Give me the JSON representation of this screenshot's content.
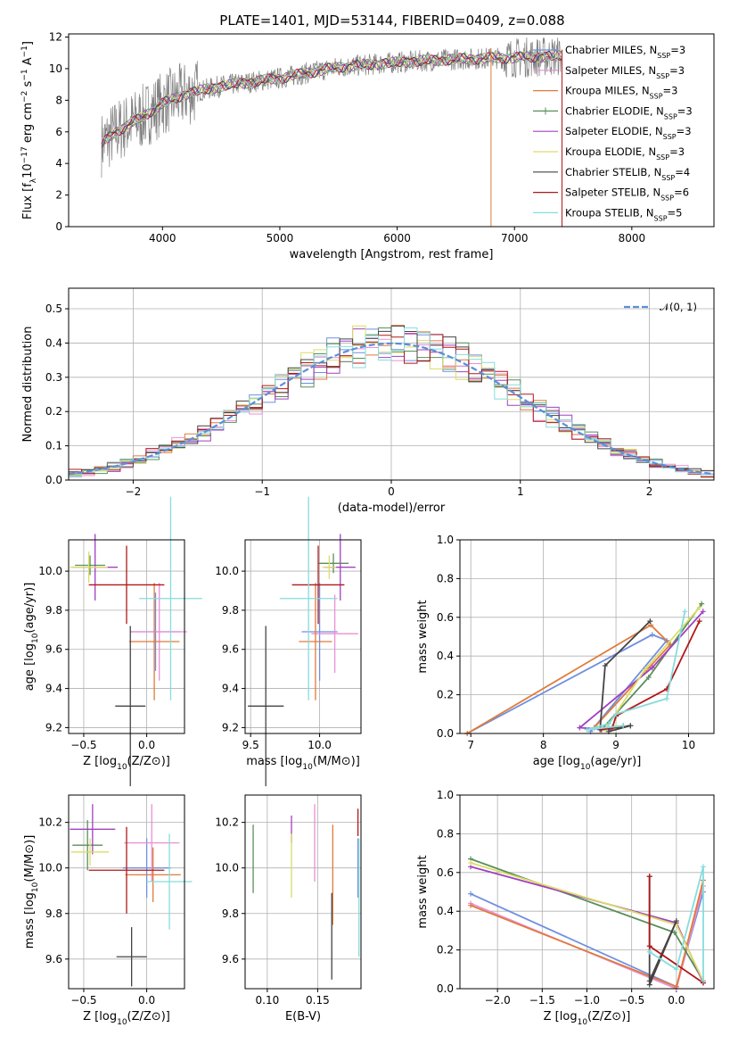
{
  "figure": {
    "title": "PLATE=1401, MJD=53144, FIBERID=0409, z=0.088"
  },
  "colors": [
    "#ff9896",
    "#e377c2",
    "#ff7f0e",
    "#2ca02c",
    "#9467bd",
    "#dbdb8d",
    "#444444",
    "#b22222",
    "#8ed8e0"
  ],
  "chart_data": [
    {
      "id": "spectrum",
      "type": "line",
      "xlabel": "wavelength [Angstrom, rest frame]",
      "ylabel": "Flux [f_λ 10^-17 erg cm^-2 s^-1 A^-1]",
      "xlim": [
        3200,
        8700
      ],
      "ylim": [
        0,
        12.2
      ],
      "xticks": [
        "4000",
        "5000",
        "6000",
        "7000",
        "8000"
      ],
      "yticks": [
        "0",
        "2",
        "4",
        "6",
        "8",
        "10",
        "12"
      ],
      "legend_position": "right",
      "series": [
        {
          "name": "Chabrier MILES, N_SSP=3",
          "color": "#6f8fdf",
          "nssp": "3"
        },
        {
          "name": "Salpeter MILES, N_SSP=3",
          "color": "#e98fd6",
          "nssp": "3"
        },
        {
          "name": "Kroupa MILES, N_SSP=3",
          "color": "#e07b39",
          "nssp": "3"
        },
        {
          "name": "Chabrier ELODIE, N_SSP=3",
          "color": "#5a8f5a",
          "nssp": "3"
        },
        {
          "name": "Salpeter ELODIE, N_SSP=3",
          "color": "#a040c0",
          "nssp": "3"
        },
        {
          "name": "Kroupa ELODIE, N_SSP=3",
          "color": "#dcdc6a",
          "nssp": "3"
        },
        {
          "name": "Chabrier STELIB, N_SSP=4",
          "color": "#444444",
          "nssp": "4"
        },
        {
          "name": "Salpeter STELIB, N_SSP=6",
          "color": "#b01818",
          "nssp": "6"
        },
        {
          "name": "Kroupa STELIB, N_SSP=5",
          "color": "#86dcdc",
          "nssp": "5"
        }
      ],
      "data_color": "#808080",
      "continuum": {
        "x": [
          3480,
          3600,
          3800,
          4000,
          4200,
          4500,
          5000,
          5500,
          6000,
          6500,
          7000,
          7400
        ],
        "y": [
          5.2,
          6.0,
          6.8,
          7.8,
          8.4,
          8.9,
          9.4,
          10.1,
          10.4,
          10.6,
          10.7,
          10.8
        ]
      }
    },
    {
      "id": "residuals",
      "type": "histogram",
      "xlabel": "(data-model)/error",
      "ylabel": "Normed distribution",
      "xlim": [
        -2.5,
        2.5
      ],
      "ylim": [
        0,
        0.56
      ],
      "xticks": [
        "−2",
        "−1",
        "0",
        "1",
        "2"
      ],
      "yticks": [
        "0.0",
        "0.1",
        "0.2",
        "0.3",
        "0.4",
        "0.5"
      ],
      "legend": "𝒩(0, 1)",
      "gaussian": {
        "mean": 0,
        "sigma": 1
      }
    },
    {
      "id": "age-vs-Z",
      "type": "errorbar",
      "xlabel": "Z [log10(Z/Z⊙)]",
      "ylabel": "age [log10(age/yr)]",
      "xlim": [
        -0.62,
        0.3
      ],
      "ylim": [
        9.17,
        10.16
      ],
      "xticks": [
        "−0.5",
        "0.0"
      ],
      "yticks": [
        "9.2",
        "9.4",
        "9.6",
        "9.8",
        "10.0"
      ],
      "points": [
        {
          "x": 0.07,
          "y": 9.69,
          "ex": 0.2,
          "ey": 0.2,
          "c": "#6f8fdf"
        },
        {
          "x": 0.1,
          "y": 9.69,
          "ex": 0.22,
          "ey": 0.25,
          "c": "#e98fd6"
        },
        {
          "x": 0.06,
          "y": 9.64,
          "ex": 0.2,
          "ey": 0.3,
          "c": "#e07b39"
        },
        {
          "x": -0.45,
          "y": 10.03,
          "ex": 0.12,
          "ey": 0.05,
          "c": "#5a8f5a"
        },
        {
          "x": -0.41,
          "y": 10.02,
          "ex": 0.18,
          "ey": 0.17,
          "c": "#a040c0"
        },
        {
          "x": -0.46,
          "y": 10.02,
          "ex": 0.15,
          "ey": 0.08,
          "c": "#dcdc6a"
        },
        {
          "x": -0.13,
          "y": 9.31,
          "ex": 0.12,
          "ey": 0.41,
          "c": "#444444"
        },
        {
          "x": -0.16,
          "y": 9.93,
          "ex": 0.3,
          "ey": 0.2,
          "c": "#b01818"
        },
        {
          "x": 0.19,
          "y": 9.86,
          "ex": 0.25,
          "ey": 0.52,
          "c": "#86dcdc"
        }
      ]
    },
    {
      "id": "age-vs-mass",
      "type": "errorbar",
      "xlabel": "mass [log10(M/M⊙)]",
      "ylabel": "",
      "xlim": [
        9.46,
        10.3
      ],
      "ylim": [
        9.17,
        10.16
      ],
      "xticks": [
        "9.5",
        "10.0"
      ],
      "yticks": [
        "9.2",
        "9.4",
        "9.6",
        "9.8",
        "10.0"
      ],
      "points": [
        {
          "x": 10.0,
          "y": 9.69,
          "ex": 0.13,
          "ey": 0.25,
          "c": "#6f8fdf"
        },
        {
          "x": 10.11,
          "y": 9.68,
          "ex": 0.17,
          "ey": 0.2,
          "c": "#e98fd6"
        },
        {
          "x": 9.97,
          "y": 9.64,
          "ex": 0.12,
          "ey": 0.3,
          "c": "#e07b39"
        },
        {
          "x": 10.1,
          "y": 10.04,
          "ex": 0.11,
          "ey": 0.05,
          "c": "#5a8f5a"
        },
        {
          "x": 10.15,
          "y": 10.02,
          "ex": 0.11,
          "ey": 0.17,
          "c": "#a040c0"
        },
        {
          "x": 10.07,
          "y": 10.02,
          "ex": 0.05,
          "ey": 0.06,
          "c": "#dcdc6a"
        },
        {
          "x": 9.61,
          "y": 9.31,
          "ex": 0.13,
          "ey": 0.41,
          "c": "#444444"
        },
        {
          "x": 9.99,
          "y": 9.93,
          "ex": 0.19,
          "ey": 0.2,
          "c": "#b01818"
        },
        {
          "x": 9.92,
          "y": 9.86,
          "ex": 0.21,
          "ey": 0.52,
          "c": "#86dcdc"
        }
      ]
    },
    {
      "id": "massweight-vs-age",
      "type": "line",
      "xlabel": "age [log10(age/yr)]",
      "ylabel": "mass weight",
      "xlim": [
        6.85,
        10.35
      ],
      "ylim": [
        0,
        1
      ],
      "xticks": [
        "7",
        "8",
        "9",
        "10"
      ],
      "yticks": [
        "0.0",
        "0.2",
        "0.4",
        "0.6",
        "0.8",
        "1.0"
      ],
      "series": [
        {
          "c": "#6f8fdf",
          "x": [
            6.95,
            9.5,
            9.7,
            8.65
          ],
          "y": [
            0.0,
            0.51,
            0.48,
            0.01
          ]
        },
        {
          "c": "#e07b39",
          "x": [
            6.95,
            9.48,
            9.75,
            8.7
          ],
          "y": [
            0.0,
            0.56,
            0.46,
            0.03
          ]
        },
        {
          "c": "#5a8f5a",
          "x": [
            10.18,
            9.45,
            8.8,
            9.2
          ],
          "y": [
            0.67,
            0.29,
            0.02,
            0.04
          ]
        },
        {
          "c": "#a040c0",
          "x": [
            10.2,
            9.5,
            8.5,
            8.9
          ],
          "y": [
            0.63,
            0.34,
            0.03,
            0.02
          ]
        },
        {
          "c": "#dcdc6a",
          "x": [
            10.15,
            9.4,
            8.85,
            9.0
          ],
          "y": [
            0.65,
            0.33,
            0.02,
            0.04
          ]
        },
        {
          "c": "#444444",
          "x": [
            9.47,
            8.85,
            8.78,
            9.2,
            8.9
          ],
          "y": [
            0.58,
            0.35,
            0.02,
            0.04,
            0.01
          ]
        },
        {
          "c": "#b01818",
          "x": [
            10.15,
            9.7,
            9.0,
            8.95,
            8.8,
            9.1
          ],
          "y": [
            0.58,
            0.23,
            0.09,
            0.03,
            0.02,
            0.04
          ]
        },
        {
          "c": "#86dcdc",
          "x": [
            9.95,
            9.7,
            9.0,
            8.9,
            8.6,
            9.1
          ],
          "y": [
            0.63,
            0.18,
            0.1,
            0.05,
            0.02,
            0.04
          ]
        }
      ]
    },
    {
      "id": "mass-vs-Z",
      "type": "errorbar",
      "xlabel": "Z [log10(Z/Z⊙)]",
      "ylabel": "mass [log10(M/M⊙)]",
      "xlim": [
        -0.62,
        0.3
      ],
      "ylim": [
        9.47,
        10.32
      ],
      "xticks": [
        "−0.5",
        "0.0"
      ],
      "yticks": [
        "9.6",
        "9.8",
        "10.0",
        "10.2"
      ],
      "points": [
        {
          "x": 0.0,
          "y": 10.0,
          "ex": 0.19,
          "ey": 0.13,
          "c": "#6f8fdf"
        },
        {
          "x": 0.04,
          "y": 10.11,
          "ex": 0.22,
          "ey": 0.17,
          "c": "#e98fd6"
        },
        {
          "x": 0.05,
          "y": 9.97,
          "ex": 0.22,
          "ey": 0.12,
          "c": "#e07b39"
        },
        {
          "x": -0.47,
          "y": 10.1,
          "ex": 0.12,
          "ey": 0.11,
          "c": "#5a8f5a"
        },
        {
          "x": -0.43,
          "y": 10.17,
          "ex": 0.18,
          "ey": 0.11,
          "c": "#a040c0"
        },
        {
          "x": -0.45,
          "y": 10.07,
          "ex": 0.15,
          "ey": 0.06,
          "c": "#dcdc6a"
        },
        {
          "x": -0.12,
          "y": 9.61,
          "ex": 0.12,
          "ey": 0.13,
          "c": "#444444"
        },
        {
          "x": -0.16,
          "y": 9.99,
          "ex": 0.3,
          "ey": 0.19,
          "c": "#b01818"
        },
        {
          "x": 0.18,
          "y": 9.94,
          "ex": 0.18,
          "ey": 0.21,
          "c": "#86dcdc"
        }
      ]
    },
    {
      "id": "mass-vs-EBV",
      "type": "errorbar",
      "xlabel": "E(B-V)",
      "ylabel": "",
      "xlim": [
        0.078,
        0.193
      ],
      "ylim": [
        9.47,
        10.32
      ],
      "xticks": [
        "0.10",
        "0.15"
      ],
      "yticks": [
        "9.6",
        "9.8",
        "10.0",
        "10.2"
      ],
      "points": [
        {
          "x": 0.19,
          "y": 10.0,
          "ex": 0,
          "ey": 0.13,
          "c": "#6f8fdf"
        },
        {
          "x": 0.147,
          "y": 10.11,
          "ex": 0,
          "ey": 0.17,
          "c": "#e98fd6"
        },
        {
          "x": 0.165,
          "y": 9.97,
          "ex": 0,
          "ey": 0.22,
          "c": "#e07b39"
        },
        {
          "x": 0.086,
          "y": 10.04,
          "ex": 0,
          "ey": 0.15,
          "c": "#5a8f5a"
        },
        {
          "x": 0.124,
          "y": 10.17,
          "ex": 0,
          "ey": 0.06,
          "c": "#a040c0"
        },
        {
          "x": 0.124,
          "y": 10.01,
          "ex": 0,
          "ey": 0.14,
          "c": "#dcdc6a"
        },
        {
          "x": 0.164,
          "y": 9.7,
          "ex": 0,
          "ey": 0.19,
          "c": "#444444"
        },
        {
          "x": 0.19,
          "y": 10.2,
          "ex": 0,
          "ey": 0.06,
          "c": "#b01818"
        },
        {
          "x": 0.191,
          "y": 9.87,
          "ex": 0,
          "ey": 0.26,
          "c": "#86dcdc"
        }
      ]
    },
    {
      "id": "massweight-vs-Z",
      "type": "line",
      "xlabel": "Z [log10(Z/Z⊙)]",
      "ylabel": "mass weight",
      "xlim": [
        -2.42,
        0.42
      ],
      "ylim": [
        0,
        1
      ],
      "xticks": [
        "−2.0",
        "−1.5",
        "−1.0",
        "−0.5",
        "0.0"
      ],
      "yticks": [
        "0.0",
        "0.2",
        "0.4",
        "0.6",
        "0.8",
        "1.0"
      ],
      "series": [
        {
          "c": "#6f8fdf",
          "x": [
            -2.3,
            0.0,
            0.3
          ],
          "y": [
            0.49,
            0.01,
            0.5
          ]
        },
        {
          "c": "#e98fd6",
          "x": [
            -2.3,
            0.0,
            0.3
          ],
          "y": [
            0.44,
            0.0,
            0.53
          ]
        },
        {
          "c": "#e07b39",
          "x": [
            -2.3,
            0.0,
            0.3
          ],
          "y": [
            0.43,
            0.01,
            0.56
          ]
        },
        {
          "c": "#5a8f5a",
          "x": [
            -2.3,
            -0.02,
            0.3
          ],
          "y": [
            0.67,
            0.29,
            0.04
          ]
        },
        {
          "c": "#a040c0",
          "x": [
            -2.3,
            0.0,
            0.3
          ],
          "y": [
            0.63,
            0.34,
            0.03
          ]
        },
        {
          "c": "#dcdc6a",
          "x": [
            -2.3,
            0.0,
            0.3
          ],
          "y": [
            0.65,
            0.33,
            0.04
          ]
        },
        {
          "c": "#444444",
          "x": [
            -0.3,
            -0.3,
            0.0,
            -0.3
          ],
          "y": [
            0.58,
            0.02,
            0.35,
            0.04
          ]
        },
        {
          "c": "#b01818",
          "x": [
            -0.3,
            -0.3,
            0.3,
            0.3
          ],
          "y": [
            0.58,
            0.22,
            0.03,
            0.04
          ]
        },
        {
          "c": "#86dcdc",
          "x": [
            -0.3,
            0.0,
            0.3,
            0.3
          ],
          "y": [
            0.19,
            0.1,
            0.63,
            0.04
          ]
        }
      ]
    }
  ]
}
